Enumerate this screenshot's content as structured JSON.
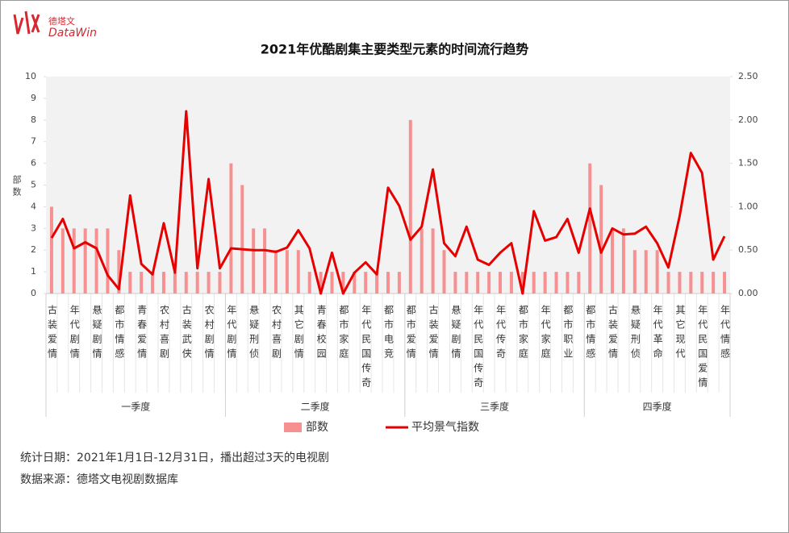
{
  "logo": {
    "cn": "德塔文",
    "en": "DataWin"
  },
  "chart_data": {
    "type": "bar_line",
    "title": "2021年优酷剧集主要类型元素的时间流行趋势",
    "y_label": "部数",
    "groups": [
      {
        "name": "一季度",
        "categories": [
          "古装爱情",
          null,
          "年代剧情",
          null,
          "悬疑剧情",
          null,
          "都市情感",
          null,
          "青春爱情",
          null,
          "农村喜剧",
          null,
          "古装武侠",
          null,
          "农村剧情",
          null
        ]
      },
      {
        "name": "二季度",
        "categories": [
          "年代剧情",
          null,
          "悬疑刑侦",
          null,
          "农村喜剧",
          null,
          "其它剧情",
          null,
          "青春校园",
          null,
          "都市家庭",
          null,
          "年代民国传奇",
          null,
          "都市电竞",
          null
        ]
      },
      {
        "name": "三季度",
        "categories": [
          "都市爱情",
          null,
          "古装爱情",
          null,
          "悬疑剧情",
          null,
          "年代民国传奇",
          null,
          "年代传奇",
          null,
          "都市家庭",
          null,
          "年代家庭",
          null,
          "都市职业",
          null
        ]
      },
      {
        "name": "四季度",
        "categories": [
          "都市情感",
          null,
          "古装爱情",
          null,
          "悬疑刑侦",
          null,
          "年代革命",
          null,
          "其它现代",
          null,
          "年代民国爱情",
          null,
          "年代情感"
        ]
      }
    ],
    "series": [
      {
        "name": "部数",
        "color": "#f79191",
        "axis": "y",
        "values": [
          4,
          3,
          3,
          3,
          3,
          3,
          2,
          1,
          1,
          1,
          1,
          1,
          1,
          1,
          1,
          1,
          6,
          5,
          3,
          3,
          2,
          2,
          2,
          1,
          1,
          1,
          1,
          1,
          1,
          1,
          1,
          1,
          8,
          3,
          3,
          2,
          1,
          1,
          1,
          1,
          1,
          1,
          1,
          1,
          1,
          1,
          1,
          1,
          6,
          5,
          3,
          3,
          2,
          2,
          2,
          1,
          1,
          1,
          1,
          1,
          1
        ]
      },
      {
        "name": "平均景气指数",
        "color": "#e60000",
        "axis": "y2",
        "values": [
          0.64,
          0.86,
          0.52,
          0.59,
          0.52,
          0.21,
          0.05,
          1.13,
          0.34,
          0.22,
          0.81,
          0.24,
          2.1,
          0.29,
          1.32,
          0.29,
          0.52,
          0.51,
          0.5,
          0.5,
          0.48,
          0.53,
          0.73,
          0.52,
          0,
          0.47,
          0,
          0.24,
          0.36,
          0.22,
          1.22,
          1.01,
          0.62,
          0.77,
          1.43,
          0.58,
          0.43,
          0.77,
          0.39,
          0.33,
          0.47,
          0.58,
          0,
          0.95,
          0.61,
          0.65,
          0.86,
          0.47,
          0.98,
          0.47,
          0.75,
          0.68,
          0.69,
          0.77,
          0.58,
          0.3,
          0.89,
          1.62,
          1.39,
          0.39,
          0.66
        ]
      }
    ],
    "ylim": [
      0,
      10
    ],
    "yticks": [
      0,
      1,
      2,
      3,
      4,
      5,
      6,
      7,
      8,
      9,
      10
    ],
    "y2lim": [
      0,
      2.5
    ],
    "y2ticks": [
      {
        "value": 0,
        "label": "0.00"
      },
      {
        "value": 0.5,
        "label": "0.50"
      },
      {
        "value": 1,
        "label": "1.00"
      },
      {
        "value": 1.5,
        "label": "1.50"
      },
      {
        "value": 2,
        "label": "2.00"
      },
      {
        "value": 2.5,
        "label": "2.50"
      }
    ],
    "notes": [
      "统计日期：2021年1月1日-12月31日，播出超过3天的电视剧",
      "数据来源：德塔文电视剧数据库"
    ]
  }
}
